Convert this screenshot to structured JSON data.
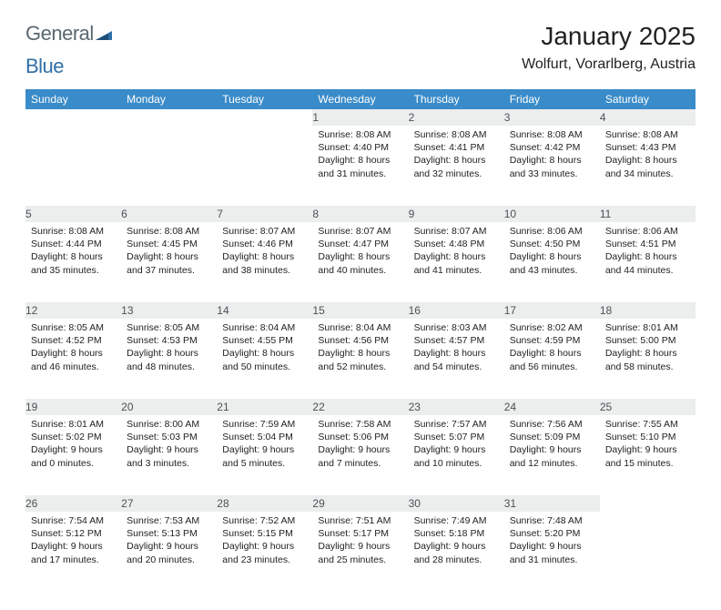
{
  "brand": {
    "name_part1": "General",
    "name_part2": "Blue"
  },
  "title": "January 2025",
  "location": "Wolfurt, Vorarlberg, Austria",
  "colors": {
    "header_bg": "#3a8bc9",
    "header_text": "#ffffff",
    "daynum_bg": "#eceded",
    "daynum_border": "#b8c0c4",
    "text": "#222222",
    "logo_gray": "#5a6870",
    "logo_blue": "#2f6fa7"
  },
  "weekdays": [
    "Sunday",
    "Monday",
    "Tuesday",
    "Wednesday",
    "Thursday",
    "Friday",
    "Saturday"
  ],
  "weeks": [
    [
      null,
      null,
      null,
      {
        "n": "1",
        "sunrise": "8:08 AM",
        "sunset": "4:40 PM",
        "dl1": "Daylight: 8 hours",
        "dl2": "and 31 minutes."
      },
      {
        "n": "2",
        "sunrise": "8:08 AM",
        "sunset": "4:41 PM",
        "dl1": "Daylight: 8 hours",
        "dl2": "and 32 minutes."
      },
      {
        "n": "3",
        "sunrise": "8:08 AM",
        "sunset": "4:42 PM",
        "dl1": "Daylight: 8 hours",
        "dl2": "and 33 minutes."
      },
      {
        "n": "4",
        "sunrise": "8:08 AM",
        "sunset": "4:43 PM",
        "dl1": "Daylight: 8 hours",
        "dl2": "and 34 minutes."
      }
    ],
    [
      {
        "n": "5",
        "sunrise": "8:08 AM",
        "sunset": "4:44 PM",
        "dl1": "Daylight: 8 hours",
        "dl2": "and 35 minutes."
      },
      {
        "n": "6",
        "sunrise": "8:08 AM",
        "sunset": "4:45 PM",
        "dl1": "Daylight: 8 hours",
        "dl2": "and 37 minutes."
      },
      {
        "n": "7",
        "sunrise": "8:07 AM",
        "sunset": "4:46 PM",
        "dl1": "Daylight: 8 hours",
        "dl2": "and 38 minutes."
      },
      {
        "n": "8",
        "sunrise": "8:07 AM",
        "sunset": "4:47 PM",
        "dl1": "Daylight: 8 hours",
        "dl2": "and 40 minutes."
      },
      {
        "n": "9",
        "sunrise": "8:07 AM",
        "sunset": "4:48 PM",
        "dl1": "Daylight: 8 hours",
        "dl2": "and 41 minutes."
      },
      {
        "n": "10",
        "sunrise": "8:06 AM",
        "sunset": "4:50 PM",
        "dl1": "Daylight: 8 hours",
        "dl2": "and 43 minutes."
      },
      {
        "n": "11",
        "sunrise": "8:06 AM",
        "sunset": "4:51 PM",
        "dl1": "Daylight: 8 hours",
        "dl2": "and 44 minutes."
      }
    ],
    [
      {
        "n": "12",
        "sunrise": "8:05 AM",
        "sunset": "4:52 PM",
        "dl1": "Daylight: 8 hours",
        "dl2": "and 46 minutes."
      },
      {
        "n": "13",
        "sunrise": "8:05 AM",
        "sunset": "4:53 PM",
        "dl1": "Daylight: 8 hours",
        "dl2": "and 48 minutes."
      },
      {
        "n": "14",
        "sunrise": "8:04 AM",
        "sunset": "4:55 PM",
        "dl1": "Daylight: 8 hours",
        "dl2": "and 50 minutes."
      },
      {
        "n": "15",
        "sunrise": "8:04 AM",
        "sunset": "4:56 PM",
        "dl1": "Daylight: 8 hours",
        "dl2": "and 52 minutes."
      },
      {
        "n": "16",
        "sunrise": "8:03 AM",
        "sunset": "4:57 PM",
        "dl1": "Daylight: 8 hours",
        "dl2": "and 54 minutes."
      },
      {
        "n": "17",
        "sunrise": "8:02 AM",
        "sunset": "4:59 PM",
        "dl1": "Daylight: 8 hours",
        "dl2": "and 56 minutes."
      },
      {
        "n": "18",
        "sunrise": "8:01 AM",
        "sunset": "5:00 PM",
        "dl1": "Daylight: 8 hours",
        "dl2": "and 58 minutes."
      }
    ],
    [
      {
        "n": "19",
        "sunrise": "8:01 AM",
        "sunset": "5:02 PM",
        "dl1": "Daylight: 9 hours",
        "dl2": "and 0 minutes."
      },
      {
        "n": "20",
        "sunrise": "8:00 AM",
        "sunset": "5:03 PM",
        "dl1": "Daylight: 9 hours",
        "dl2": "and 3 minutes."
      },
      {
        "n": "21",
        "sunrise": "7:59 AM",
        "sunset": "5:04 PM",
        "dl1": "Daylight: 9 hours",
        "dl2": "and 5 minutes."
      },
      {
        "n": "22",
        "sunrise": "7:58 AM",
        "sunset": "5:06 PM",
        "dl1": "Daylight: 9 hours",
        "dl2": "and 7 minutes."
      },
      {
        "n": "23",
        "sunrise": "7:57 AM",
        "sunset": "5:07 PM",
        "dl1": "Daylight: 9 hours",
        "dl2": "and 10 minutes."
      },
      {
        "n": "24",
        "sunrise": "7:56 AM",
        "sunset": "5:09 PM",
        "dl1": "Daylight: 9 hours",
        "dl2": "and 12 minutes."
      },
      {
        "n": "25",
        "sunrise": "7:55 AM",
        "sunset": "5:10 PM",
        "dl1": "Daylight: 9 hours",
        "dl2": "and 15 minutes."
      }
    ],
    [
      {
        "n": "26",
        "sunrise": "7:54 AM",
        "sunset": "5:12 PM",
        "dl1": "Daylight: 9 hours",
        "dl2": "and 17 minutes."
      },
      {
        "n": "27",
        "sunrise": "7:53 AM",
        "sunset": "5:13 PM",
        "dl1": "Daylight: 9 hours",
        "dl2": "and 20 minutes."
      },
      {
        "n": "28",
        "sunrise": "7:52 AM",
        "sunset": "5:15 PM",
        "dl1": "Daylight: 9 hours",
        "dl2": "and 23 minutes."
      },
      {
        "n": "29",
        "sunrise": "7:51 AM",
        "sunset": "5:17 PM",
        "dl1": "Daylight: 9 hours",
        "dl2": "and 25 minutes."
      },
      {
        "n": "30",
        "sunrise": "7:49 AM",
        "sunset": "5:18 PM",
        "dl1": "Daylight: 9 hours",
        "dl2": "and 28 minutes."
      },
      {
        "n": "31",
        "sunrise": "7:48 AM",
        "sunset": "5:20 PM",
        "dl1": "Daylight: 9 hours",
        "dl2": "and 31 minutes."
      },
      null
    ]
  ],
  "labels": {
    "sunrise_prefix": "Sunrise: ",
    "sunset_prefix": "Sunset: "
  }
}
